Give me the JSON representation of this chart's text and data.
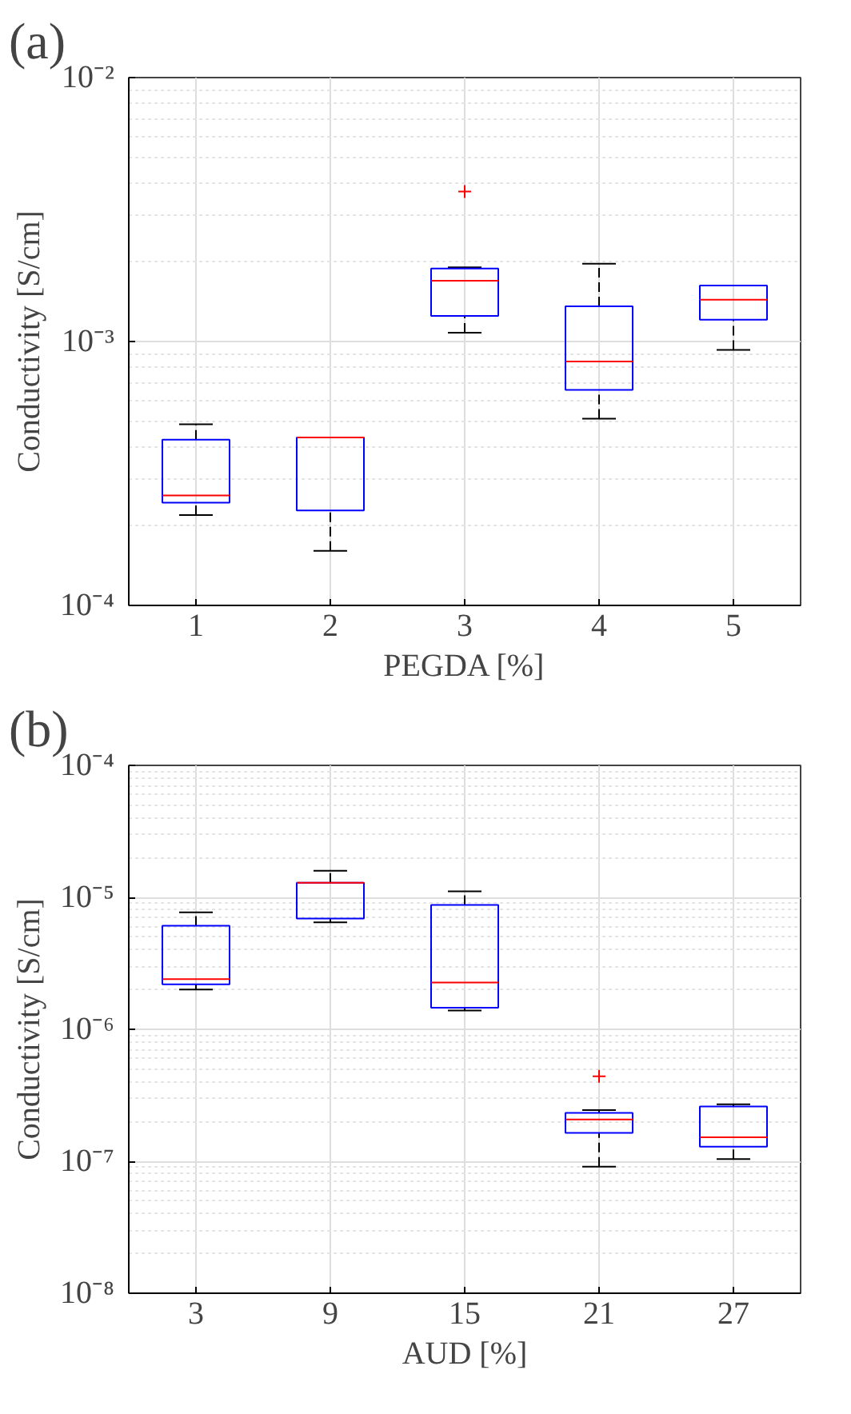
{
  "chart_data": [
    {
      "type": "box",
      "title": "(a)",
      "xlabel": "PEGDA [%]",
      "ylabel": "Conductivity [S/cm]",
      "log": "y",
      "grid": true,
      "categories": [
        "1",
        "2",
        "3",
        "4",
        "5"
      ],
      "ylim": [
        0.0001,
        0.01
      ],
      "yticks": [
        {
          "value": 0.0001,
          "label": "10⁻⁴"
        },
        {
          "value": 0.001,
          "label": "10⁻³"
        },
        {
          "value": 0.01,
          "label": "10⁻²"
        }
      ],
      "series": [
        {
          "color": "#0000ff",
          "boxes": [
            {
              "low": 0.00022,
              "q1": 0.000245,
              "median": 0.000261,
              "q3": 0.000425,
              "high": 0.000486
            },
            {
              "low": 0.000161,
              "q1": 0.000229,
              "median": 0.000433,
              "q3": 0.000433,
              "high": 0.000433
            },
            {
              "low": 0.00108,
              "q1": 0.00125,
              "median": 0.0017,
              "q3": 0.00189,
              "high": 0.00191,
              "outliers": [
                0.0037
              ]
            },
            {
              "low": 0.00051,
              "q1": 0.000656,
              "median": 0.00084,
              "q3": 0.00136,
              "high": 0.00197
            },
            {
              "low": 0.00093,
              "q1": 0.00121,
              "median": 0.00144,
              "q3": 0.00163,
              "high": 0.00163
            }
          ]
        }
      ]
    },
    {
      "type": "box",
      "title": "(b)",
      "xlabel": "AUD [%]",
      "ylabel": "Conductivity [S/cm]",
      "log": "y",
      "grid": true,
      "categories": [
        "3",
        "9",
        "15",
        "21",
        "27"
      ],
      "ylim": [
        1e-08,
        0.0001
      ],
      "yticks": [
        {
          "value": 1e-08,
          "label": "10⁻⁸"
        },
        {
          "value": 1e-07,
          "label": "10⁻⁷"
        },
        {
          "value": 1e-06,
          "label": "10⁻⁶"
        },
        {
          "value": 1e-05,
          "label": "10⁻⁵"
        },
        {
          "value": 0.0001,
          "label": "10⁻⁴"
        }
      ],
      "series": [
        {
          "color": "#0000ff",
          "boxes": [
            {
              "low": 2e-06,
              "q1": 2.19e-06,
              "median": 2.4e-06,
              "q3": 6.1e-06,
              "high": 7.7e-06
            },
            {
              "low": 6.46e-06,
              "q1": 6.9e-06,
              "median": 1.29e-05,
              "q3": 1.29e-05,
              "high": 1.59e-05
            },
            {
              "low": 1.39e-06,
              "q1": 1.46e-06,
              "median": 2.26e-06,
              "q3": 8.75e-06,
              "high": 1.11e-05
            },
            {
              "low": 9.1e-08,
              "q1": 1.64e-07,
              "median": 2.07e-07,
              "q3": 2.33e-07,
              "high": 2.44e-07,
              "outliers": [
                4.4e-07
              ]
            },
            {
              "low": 1.04e-07,
              "q1": 1.29e-07,
              "median": 1.52e-07,
              "q3": 2.6e-07,
              "high": 2.7e-07
            }
          ]
        }
      ]
    }
  ]
}
